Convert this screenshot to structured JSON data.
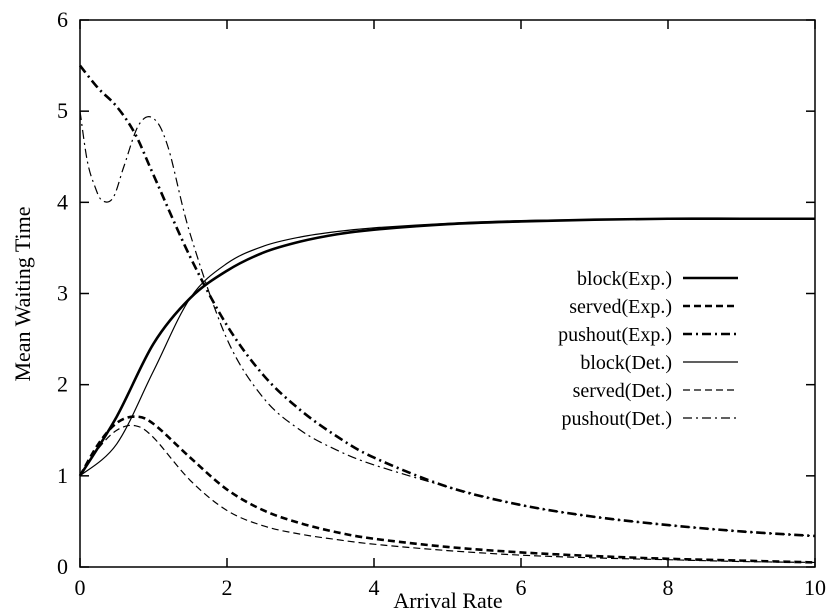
{
  "chart_data": {
    "type": "line",
    "title": "",
    "xlabel": "Arrival Rate",
    "ylabel": "Mean Waiting Time",
    "xlim": [
      0,
      10
    ],
    "ylim": [
      0,
      6
    ],
    "xticks": [
      0,
      2,
      4,
      6,
      8,
      10
    ],
    "yticks": [
      0,
      1,
      2,
      3,
      4,
      5,
      6
    ],
    "xtick_labels": [
      "0",
      "2",
      "4",
      "6",
      "8",
      "10"
    ],
    "ytick_labels": [
      "0",
      "1",
      "2",
      "3",
      "4",
      "5",
      "6"
    ],
    "grid": false,
    "legend": "center-right",
    "series": [
      {
        "name": "block(Exp.)",
        "style": "solid-thick",
        "x": [
          0,
          0.5,
          1,
          1.5,
          2,
          2.5,
          3,
          3.5,
          4,
          5,
          6,
          7,
          8,
          9,
          10
        ],
        "y": [
          1.0,
          1.65,
          2.45,
          2.95,
          3.25,
          3.45,
          3.57,
          3.65,
          3.7,
          3.76,
          3.79,
          3.81,
          3.82,
          3.82,
          3.82
        ]
      },
      {
        "name": "served(Exp.)",
        "style": "dashed-thick",
        "x": [
          0,
          0.25,
          0.5,
          0.75,
          1,
          1.5,
          2,
          2.5,
          3,
          3.5,
          4,
          5,
          6,
          7,
          8,
          9,
          10
        ],
        "y": [
          1.0,
          1.35,
          1.58,
          1.65,
          1.57,
          1.2,
          0.85,
          0.62,
          0.48,
          0.38,
          0.31,
          0.22,
          0.16,
          0.12,
          0.09,
          0.07,
          0.05
        ]
      },
      {
        "name": "pushout(Exp.)",
        "style": "dashdot-thick",
        "x": [
          0,
          0.25,
          0.5,
          0.75,
          1,
          1.5,
          2,
          2.5,
          3,
          3.5,
          4,
          5,
          6,
          7,
          8,
          9,
          10
        ],
        "y": [
          5.5,
          5.25,
          5.05,
          4.75,
          4.3,
          3.4,
          2.65,
          2.1,
          1.72,
          1.43,
          1.2,
          0.88,
          0.68,
          0.55,
          0.46,
          0.39,
          0.34
        ]
      },
      {
        "name": "block(Det.)",
        "style": "solid-thin",
        "x": [
          0,
          0.5,
          1,
          1.5,
          2,
          2.5,
          3,
          3.5,
          4,
          5,
          6,
          7,
          8,
          9,
          10
        ],
        "y": [
          1.0,
          1.35,
          2.15,
          2.95,
          3.33,
          3.52,
          3.62,
          3.68,
          3.72,
          3.77,
          3.8,
          3.81,
          3.82,
          3.82,
          3.82
        ]
      },
      {
        "name": "served(Det.)",
        "style": "dashed-thin",
        "x": [
          0,
          0.25,
          0.5,
          0.75,
          1,
          1.5,
          2,
          2.5,
          3,
          3.5,
          4,
          5,
          6,
          7,
          8,
          9,
          10
        ],
        "y": [
          1.0,
          1.3,
          1.5,
          1.55,
          1.42,
          0.95,
          0.62,
          0.45,
          0.36,
          0.3,
          0.25,
          0.18,
          0.13,
          0.1,
          0.08,
          0.06,
          0.05
        ]
      },
      {
        "name": "pushout(Det.)",
        "style": "dashdot-thin",
        "x": [
          0,
          0.1,
          0.2,
          0.3,
          0.45,
          0.6,
          0.8,
          1.0,
          1.2,
          1.5,
          2,
          2.5,
          3,
          3.5,
          4,
          5,
          6,
          7,
          8,
          9,
          10
        ],
        "y": [
          5.0,
          4.45,
          4.18,
          4.02,
          4.05,
          4.4,
          4.85,
          4.92,
          4.6,
          3.65,
          2.5,
          1.85,
          1.5,
          1.28,
          1.12,
          0.88,
          0.68,
          0.55,
          0.46,
          0.39,
          0.34
        ]
      }
    ]
  }
}
